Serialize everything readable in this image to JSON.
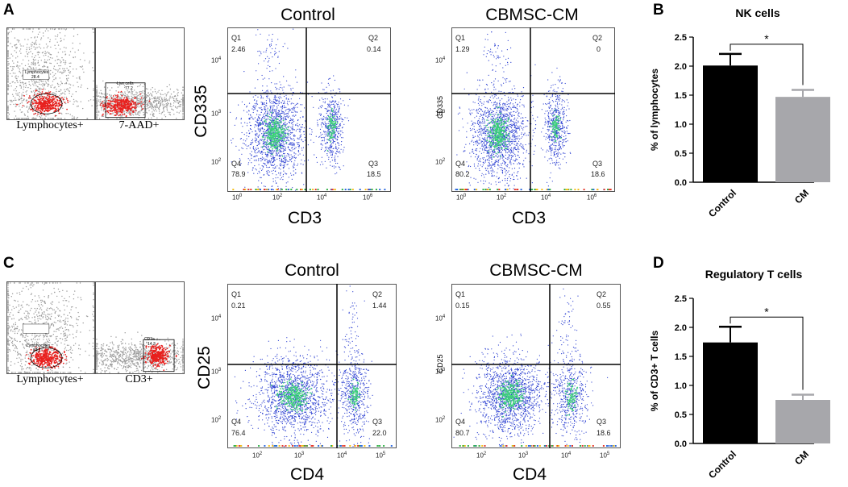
{
  "panels": {
    "A": {
      "letter": "A",
      "gates": [
        {
          "caption": "Lymphocytes+",
          "gate_label": "Lymphocytes",
          "gate_value": "28.4"
        },
        {
          "caption": "7-AAD+",
          "gate_label": "Live cells",
          "gate_value": "77.2"
        }
      ],
      "plots": [
        {
          "title": "Control",
          "x_label": "CD3",
          "y_label": "CD335",
          "y_label_size": "large",
          "quadrants": {
            "Q1": {
              "name": "Q1",
              "value": "2.46"
            },
            "Q2": {
              "name": "Q2",
              "value": "0.14"
            },
            "Q3": {
              "name": "Q3",
              "value": "18.5"
            },
            "Q4": {
              "name": "Q4",
              "value": "78.9"
            }
          },
          "x_ticks": [
            "0",
            "2",
            "4",
            "6"
          ],
          "y_ticks": [
            "2",
            "3",
            "4"
          ]
        },
        {
          "title": "CBMSC-CM",
          "x_label": "CD3",
          "y_label": "CD335",
          "y_label_size": "small",
          "quadrants": {
            "Q1": {
              "name": "Q1",
              "value": "1.29"
            },
            "Q2": {
              "name": "Q2",
              "value": "0"
            },
            "Q3": {
              "name": "Q3",
              "value": "18.6"
            },
            "Q4": {
              "name": "Q4",
              "value": "80.2"
            }
          },
          "x_ticks": [
            "0",
            "2",
            "4",
            "6"
          ],
          "y_ticks": [
            "2",
            "3",
            "4"
          ]
        }
      ]
    },
    "C": {
      "letter": "C",
      "gates": [
        {
          "caption": "Lymphocytes+",
          "gate_label": "Lymphocytes",
          "gate_value": "84.1"
        },
        {
          "caption": "CD3+",
          "gate_label": "CD3a",
          "gate_value": "14.3"
        }
      ],
      "plots": [
        {
          "title": "Control",
          "x_label": "CD4",
          "y_label": "CD25",
          "y_label_size": "large",
          "quadrants": {
            "Q1": {
              "name": "Q1",
              "value": "0.21"
            },
            "Q2": {
              "name": "Q2",
              "value": "1.44"
            },
            "Q3": {
              "name": "Q3",
              "value": "22.0"
            },
            "Q4": {
              "name": "Q4",
              "value": "76.4"
            }
          },
          "x_ticks": [
            "2",
            "3",
            "4",
            "5"
          ],
          "y_ticks": [
            "2",
            "3",
            "4"
          ]
        },
        {
          "title": "CBMSC-CM",
          "x_label": "CD4",
          "y_label": "CD25",
          "y_label_size": "small",
          "quadrants": {
            "Q1": {
              "name": "Q1",
              "value": "0.15"
            },
            "Q2": {
              "name": "Q2",
              "value": "0.55"
            },
            "Q3": {
              "name": "Q3",
              "value": "18.6"
            },
            "Q4": {
              "name": "Q4",
              "value": "80.7"
            }
          },
          "x_ticks": [
            "2",
            "3",
            "4",
            "5"
          ],
          "y_ticks": [
            "2",
            "3",
            "4"
          ]
        }
      ]
    },
    "B": {
      "letter": "B"
    },
    "D": {
      "letter": "D"
    }
  },
  "tick_base": "10",
  "colors": {
    "control_bar": "#000000",
    "cm_bar": "#a7a7ab",
    "dots_blue": "#2b3fd1",
    "dots_green": "#3cd07a",
    "gate_red": "#e8201e",
    "gate_gray": "#9a9a9a"
  },
  "chart_data": [
    {
      "id": "B",
      "type": "bar",
      "title": "NK cells",
      "categories": [
        "Control",
        "CM"
      ],
      "values": [
        2.01,
        1.47
      ],
      "errors": [
        0.2,
        0.12
      ],
      "ylabel": "% of lymphocytes",
      "xlabel": "",
      "ylim": [
        0,
        2.5
      ],
      "yticks": [
        "0.0",
        "0.5",
        "1.0",
        "1.5",
        "2.0",
        "2.5"
      ],
      "significance": "*"
    },
    {
      "id": "D",
      "type": "bar",
      "title": "Regulatory T cells",
      "categories": [
        "Control",
        "CM"
      ],
      "values": [
        1.74,
        0.75
      ],
      "errors": [
        0.27,
        0.09
      ],
      "ylabel": "% of CD3+ T cells",
      "xlabel": "",
      "ylim": [
        0,
        2.5
      ],
      "yticks": [
        "0.0",
        "0.5",
        "1.0",
        "1.5",
        "2.0",
        "2.5"
      ],
      "significance": "*"
    }
  ]
}
